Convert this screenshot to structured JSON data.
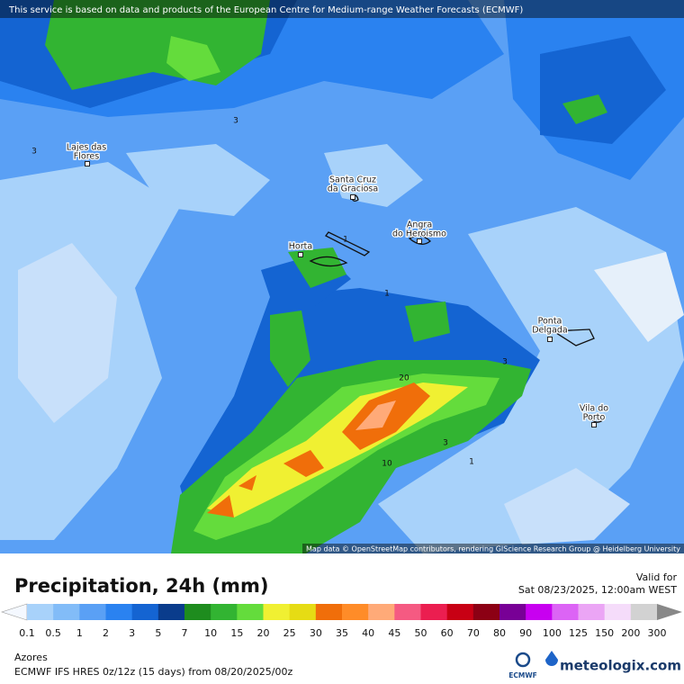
{
  "header": {
    "notice": "This service is based on data and products of the European Centre for Medium-range Weather Forecasts (ECMWF)"
  },
  "map": {
    "places": [
      {
        "lines": [
          "Lajes das",
          "Flores"
        ]
      },
      {
        "lines": [
          "Santa Cruz",
          "da Graciosa"
        ]
      },
      {
        "lines": [
          "Angra",
          "do Heroismo"
        ]
      },
      {
        "lines": [
          "Horta"
        ]
      },
      {
        "lines": [
          "Ponta",
          "Delgada"
        ]
      },
      {
        "lines": [
          "Vila do",
          "Porto"
        ]
      }
    ],
    "contour_labels": [
      3,
      3,
      1,
      1,
      20,
      3,
      3,
      10,
      1
    ],
    "attribution": "Map data © OpenStreetMap contributors, rendering GIScience Research Group @ Heidelberg University"
  },
  "title": "Precipitation, 24h (mm)",
  "valid_label": "Valid for",
  "valid_time": "Sat 08/23/2025, 12:00am WEST",
  "legend": {
    "ticks": [
      0.1,
      0.5,
      1,
      2,
      3,
      5,
      7,
      10,
      15,
      20,
      25,
      30,
      35,
      40,
      45,
      50,
      60,
      70,
      80,
      90,
      100,
      125,
      150,
      200,
      300
    ],
    "colors": [
      "#a8d2fa",
      "#82bcf8",
      "#5aa0f5",
      "#2a82f0",
      "#1464d2",
      "#0a3c8c",
      "#1e8c1e",
      "#32b432",
      "#64dc3c",
      "#f0f032",
      "#e6dc14",
      "#f06e0a",
      "#ff8c28",
      "#ffaa78",
      "#f55a82",
      "#eb1e50",
      "#c80014",
      "#8c0014",
      "#780096",
      "#c800f0",
      "#dc64f5",
      "#eba5f5",
      "#f5dcfa",
      "#d2d2d2"
    ]
  },
  "region": "Azores",
  "model_run": "ECMWF IFS HRES 0z/12z (15 days) from 08/20/2025/00z",
  "logos": {
    "ecmwf": "ECMWF",
    "site": "meteologix.com"
  }
}
